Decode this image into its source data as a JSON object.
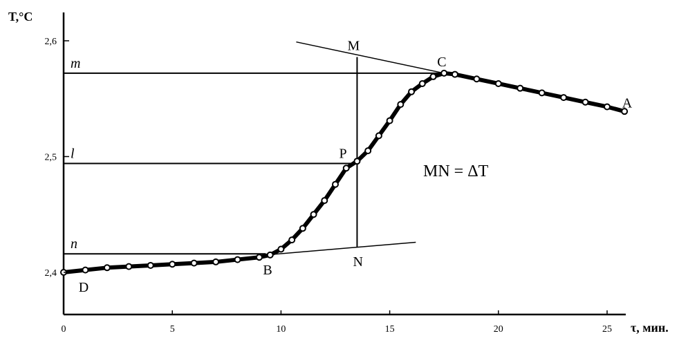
{
  "chart_data": {
    "type": "line",
    "title": "",
    "ylabel": "T,°C",
    "xlabel": "τ, мин.",
    "xlim": [
      0,
      27
    ],
    "ylim": [
      2.36,
      2.63
    ],
    "x_ticks": [
      "0",
      "5",
      "10",
      "15",
      "20",
      "25"
    ],
    "y_ticks": [
      "2,4",
      "2,5",
      "2,6"
    ],
    "y_tick_values": [
      2.4,
      2.5,
      2.6
    ],
    "grid": false,
    "series": [
      {
        "x": [
          0,
          1,
          2,
          3,
          4,
          5,
          6,
          7,
          8,
          9,
          9.5,
          10,
          10.5,
          11,
          11.5,
          12,
          12.5,
          13,
          13.5,
          14,
          14.5,
          15,
          15.5,
          16,
          16.5,
          17,
          17.5,
          18,
          19,
          20,
          21,
          22,
          23,
          24,
          25,
          25.8
        ],
        "y": [
          2.4,
          2.402,
          2.404,
          2.405,
          2.406,
          2.407,
          2.408,
          2.409,
          2.411,
          2.413,
          2.415,
          2.42,
          2.428,
          2.438,
          2.45,
          2.462,
          2.476,
          2.49,
          2.496,
          2.505,
          2.518,
          2.531,
          2.545,
          2.556,
          2.563,
          2.569,
          2.572,
          2.571,
          2.567,
          2.563,
          2.559,
          2.555,
          2.551,
          2.547,
          2.543,
          2.539
        ]
      }
    ],
    "tangent_lines": [
      {
        "x": [
          10.7,
          17.5
        ],
        "y": [
          2.599,
          2.572
        ]
      },
      {
        "x": [
          9.3,
          16.2
        ],
        "y": [
          2.415,
          2.426
        ]
      }
    ],
    "horizontal_levels": [
      {
        "label": "m",
        "y": 2.572
      },
      {
        "label": "l",
        "y": 2.494
      },
      {
        "label": "n",
        "y": 2.416
      }
    ],
    "vertical_segment": {
      "x": 13.5,
      "y": [
        2.586,
        2.422
      ]
    },
    "points": [
      {
        "label": "M",
        "x": 13.5,
        "y": 2.586
      },
      {
        "label": "C",
        "x": 17.5,
        "y": 2.572
      },
      {
        "label": "P",
        "x": 13.5,
        "y": 2.494
      },
      {
        "label": "A",
        "x": 25.5,
        "y": 2.54
      },
      {
        "label": "N",
        "x": 13.5,
        "y": 2.422
      },
      {
        "label": "B",
        "x": 9.3,
        "y": 2.415
      },
      {
        "label": "D",
        "x": 0.5,
        "y": 2.4
      }
    ],
    "annotation": "MN = ΔT"
  }
}
